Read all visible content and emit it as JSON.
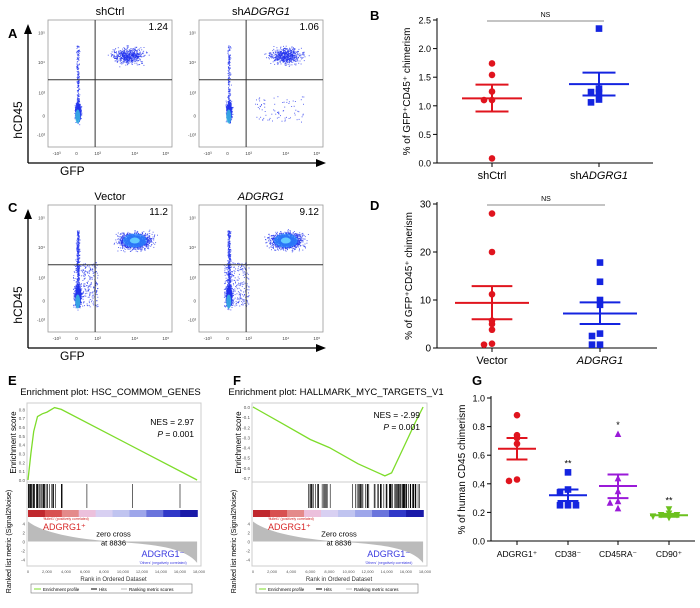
{
  "panel_labels": [
    "A",
    "B",
    "C",
    "D",
    "E",
    "F",
    "G"
  ],
  "flow": {
    "y_label": "hCD45",
    "x_label": "GFP",
    "x_ticks": [
      "-10³",
      "0",
      "10³",
      "10⁴",
      "10⁵"
    ],
    "y_ticks": [
      "10⁵",
      "10⁴",
      "10³",
      "0",
      "-10³"
    ],
    "panels": [
      {
        "title": "shCtrl",
        "italic": false,
        "value": "1.24"
      },
      {
        "title_prefix": "sh",
        "title": "ADGRG1",
        "italic": true,
        "value": "1.06"
      },
      {
        "title": "Vector",
        "italic": false,
        "value": "11.2"
      },
      {
        "title": "ADGRG1",
        "italic": true,
        "value": "9.12"
      }
    ]
  },
  "chart_data": [
    {
      "id": "B",
      "type": "scatter",
      "ylabel": "% of GFP⁺CD45⁺ chimerism",
      "ylim": [
        0,
        2.5
      ],
      "yticks": [
        "0.0",
        "0.5",
        "1.0",
        "1.5",
        "2.0",
        "2.5"
      ],
      "significance": "NS",
      "groups": [
        {
          "label": "shCtrl",
          "label_prefix": "",
          "italic": false,
          "color": "#e0141e",
          "marker": "circle",
          "values": [
            1.74,
            1.54,
            1.25,
            1.1,
            1.1,
            0.08
          ],
          "mean": 1.13,
          "sem_low": 0.9,
          "sem_high": 1.37
        },
        {
          "label": "ADGRG1",
          "label_prefix": "sh",
          "italic": true,
          "color": "#1424e0",
          "marker": "square",
          "values": [
            2.35,
            1.3,
            1.24,
            1.23,
            1.11,
            1.06
          ],
          "mean": 1.38,
          "sem_low": 1.18,
          "sem_high": 1.58
        }
      ]
    },
    {
      "id": "D",
      "type": "scatter",
      "ylabel": "% of GFP⁺CD45⁺ chimerism",
      "ylim": [
        0,
        30
      ],
      "yticks": [
        "0",
        "10",
        "20",
        "30"
      ],
      "significance": "NS",
      "groups": [
        {
          "label": "Vector",
          "label_prefix": "",
          "italic": false,
          "color": "#e0141e",
          "marker": "circle",
          "values": [
            28,
            20,
            11.2,
            5.7,
            5,
            3.8,
            0.9,
            0.7
          ],
          "mean": 9.4,
          "sem_low": 6,
          "sem_high": 12.9
        },
        {
          "label": "ADGRG1",
          "label_prefix": "",
          "italic": true,
          "color": "#1424e0",
          "marker": "square",
          "values": [
            17.8,
            13.8,
            10,
            9,
            3,
            2.5,
            0.7,
            0.7
          ],
          "mean": 7.2,
          "sem_low": 5,
          "sem_high": 9.5
        }
      ]
    },
    {
      "id": "G",
      "type": "scatter",
      "ylabel": "% of human CD45 chimerism",
      "ylim": [
        0,
        1.0
      ],
      "yticks": [
        "0.0",
        "0.2",
        "0.4",
        "0.6",
        "0.8",
        "1.0"
      ],
      "groups": [
        {
          "label": "ADGRG1⁺",
          "color": "#e0141e",
          "marker": "circle",
          "values": [
            0.88,
            0.74,
            0.72,
            0.68,
            0.43,
            0.42
          ],
          "mean": 0.645,
          "sem_low": 0.57,
          "sem_high": 0.72,
          "significance": ""
        },
        {
          "label": "CD38⁻",
          "color": "#1424e0",
          "marker": "square",
          "values": [
            0.48,
            0.36,
            0.34,
            0.25,
            0.25,
            0.25
          ],
          "mean": 0.32,
          "sem_low": 0.28,
          "sem_high": 0.36,
          "significance": "**"
        },
        {
          "label": "CD45RA⁻",
          "color": "#9a1ad8",
          "marker": "triangle",
          "values": [
            0.75,
            0.44,
            0.35,
            0.28,
            0.27,
            0.23
          ],
          "mean": 0.385,
          "sem_low": 0.3,
          "sem_high": 0.465,
          "significance": "*"
        },
        {
          "label": "CD90⁺",
          "color": "#6cc11e",
          "marker": "triangle-down",
          "values": [
            0.22,
            0.19,
            0.18,
            0.18,
            0.17,
            0.16
          ],
          "mean": 0.18,
          "sem_low": 0.17,
          "sem_high": 0.19,
          "significance": "**"
        }
      ]
    },
    {
      "id": "E",
      "type": "line",
      "title": "Enrichment plot: HSC_COMMOM_GENES",
      "ylabel": "Enrichment score",
      "ylim": [
        0,
        0.85
      ],
      "yticks": [
        "0.0",
        "0.1",
        "0.2",
        "0.3",
        "0.4",
        "0.5",
        "0.6",
        "0.7",
        "0.8"
      ],
      "nes": "NES = 2.97",
      "p_label": "P",
      "p_value": " = 0.001",
      "x": [
        0,
        300,
        600,
        1000,
        1500,
        2000,
        2800,
        3500,
        17800
      ],
      "y": [
        0,
        0.3,
        0.55,
        0.72,
        0.75,
        0.77,
        0.82,
        0.8,
        0
      ],
      "color": "#7ddc2a"
    },
    {
      "id": "F",
      "type": "line",
      "title": "Enrichment plot: HALLMARK_MYC_TARGETS_V1",
      "ylabel": "Enrichment score",
      "ylim": [
        -0.72,
        0.02
      ],
      "yticks": [
        "0.0",
        "-0.1",
        "-0.2",
        "-0.3",
        "-0.4",
        "-0.5",
        "-0.6",
        "-0.7"
      ],
      "nes": "NES = -2.99",
      "p_label": "P",
      "p_value": " = 0.001",
      "x": [
        0,
        3000,
        6000,
        8000,
        11000,
        13800,
        14500,
        16000,
        17000,
        17800
      ],
      "y": [
        0,
        -0.16,
        -0.32,
        -0.4,
        -0.56,
        -0.68,
        -0.65,
        -0.35,
        -0.15,
        0
      ],
      "color": "#7ddc2a"
    }
  ],
  "gsea_common": {
    "ranked_ylabel": "Ranked list metric\n(Signal2Noise)",
    "ranked_yticks": [
      "4",
      "2",
      "0",
      "-2",
      "-4"
    ],
    "x_ticks": [
      "0",
      "2,000",
      "4,000",
      "6,000",
      "8,000",
      "10,000",
      "12,000",
      "14,000",
      "16,000",
      "18,000"
    ],
    "xlabel": "Rank in Ordered Dataset",
    "zero_cross_line1": "zero cross",
    "zero_cross_line1_F": "Zero cross",
    "zero_cross_line2": "at 8836",
    "pos_label": "ADGRG1⁺",
    "neg_label": "ADGRG1⁻",
    "pos_note": "'ffullet1' (positively correlated)",
    "neg_note": "'Others' (negatively correlated)",
    "legend": [
      "Enrichment profile",
      "Hits",
      "Ranking metric scores"
    ]
  }
}
